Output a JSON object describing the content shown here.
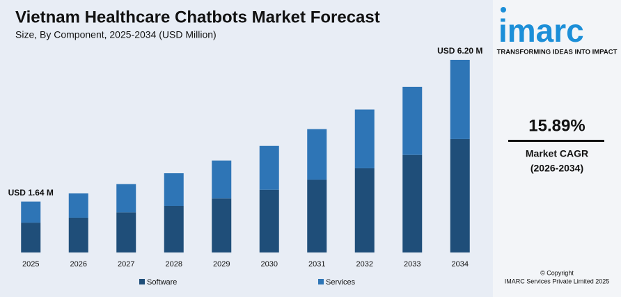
{
  "chart_data": {
    "type": "stacked-bar",
    "title": "Vietnam Healthcare Chatbots Market Forecast",
    "subtitle": "Size, By Component, 2025-2034 (USD Million)",
    "categories": [
      "2025",
      "2026",
      "2027",
      "2028",
      "2029",
      "2030",
      "2031",
      "2032",
      "2033",
      "2034"
    ],
    "series": [
      {
        "name": "Software",
        "color": "#1f4e79",
        "values": [
          0.96,
          1.12,
          1.29,
          1.5,
          1.74,
          2.02,
          2.34,
          2.71,
          3.14,
          3.65
        ]
      },
      {
        "name": "Services",
        "color": "#2e75b6",
        "values": [
          0.68,
          0.78,
          0.91,
          1.05,
          1.22,
          1.41,
          1.63,
          1.89,
          2.19,
          2.55
        ]
      }
    ],
    "annotations": [
      "USD 1.64 M",
      "USD 6.20 M"
    ]
  },
  "panel": {
    "logo": "imarc",
    "tagline": "TRANSFORMING IDEAS INTO IMPACT",
    "cagr": "15.89%",
    "cagr_label": "Market CAGR",
    "cagr_period": "(2026-2034)",
    "copyright": "© Copyright",
    "company": "IMARC Services Private Limited 2025"
  }
}
